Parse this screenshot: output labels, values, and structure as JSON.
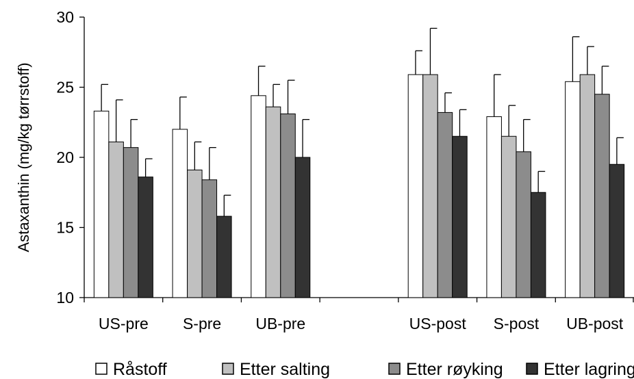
{
  "chart_data": {
    "type": "bar",
    "ylabel": "Astaxanthin (mg/kg tørrstoff)",
    "xlabel": "",
    "ylim": [
      10,
      30
    ],
    "yticks": [
      10,
      15,
      20,
      25,
      30
    ],
    "grid": false,
    "legend_position": "bottom",
    "categories": [
      "US-pre",
      "S-pre",
      "UB-pre",
      "",
      "US-post",
      "S-post",
      "UB-post"
    ],
    "series": [
      {
        "name": "Råstoff",
        "color": "#ffffff",
        "values": [
          23.3,
          22.0,
          24.4,
          null,
          25.9,
          22.9,
          25.4
        ],
        "errors": [
          1.9,
          2.3,
          2.1,
          null,
          1.7,
          3.0,
          3.2
        ]
      },
      {
        "name": "Etter salting",
        "color": "#c0c0c0",
        "values": [
          21.1,
          19.1,
          23.6,
          null,
          25.9,
          21.5,
          25.9
        ],
        "errors": [
          3.0,
          2.0,
          1.6,
          null,
          3.3,
          2.2,
          2.0
        ]
      },
      {
        "name": "Etter røyking",
        "color": "#8c8c8c",
        "values": [
          20.7,
          18.4,
          23.1,
          null,
          23.2,
          20.4,
          24.5
        ],
        "errors": [
          2.0,
          2.3,
          2.4,
          null,
          1.4,
          2.3,
          2.0
        ]
      },
      {
        "name": "Etter lagring",
        "color": "#333333",
        "values": [
          18.6,
          15.8,
          20.0,
          null,
          21.5,
          17.5,
          19.5
        ],
        "errors": [
          1.3,
          1.5,
          2.7,
          null,
          1.9,
          1.5,
          1.9
        ]
      }
    ]
  }
}
